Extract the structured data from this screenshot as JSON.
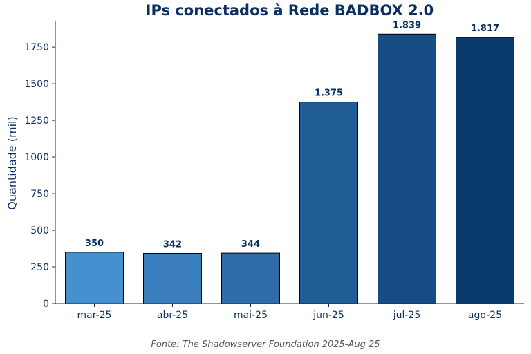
{
  "colors": {
    "text": "#0b2f5e",
    "axis": "#0b2f5e",
    "source_text": "#555555",
    "bar_outline": "#000000"
  },
  "chart_data": {
    "type": "bar",
    "title": "IPs conectados à Rede BADBOX 2.0",
    "xlabel": "",
    "ylabel": "Quantidade (mil)",
    "categories": [
      "mar-25",
      "abr-25",
      "mai-25",
      "jun-25",
      "jul-25",
      "ago-25"
    ],
    "values": [
      350,
      342,
      344,
      1375,
      1839,
      1817
    ],
    "value_labels": [
      "350",
      "342",
      "344",
      "1.375",
      "1.839",
      "1.817"
    ],
    "bar_colors": [
      "#4690d0",
      "#3c7fbe",
      "#2f6ca8",
      "#215e97",
      "#164d86",
      "#093a6c"
    ],
    "ylim": [
      0,
      1930
    ],
    "yticks": [
      0,
      250,
      500,
      750,
      1000,
      1250,
      1500,
      1750
    ],
    "grid": false,
    "legend": "none"
  },
  "source": "Fonte: The Shadowserver Foundation 2025-Aug 25"
}
